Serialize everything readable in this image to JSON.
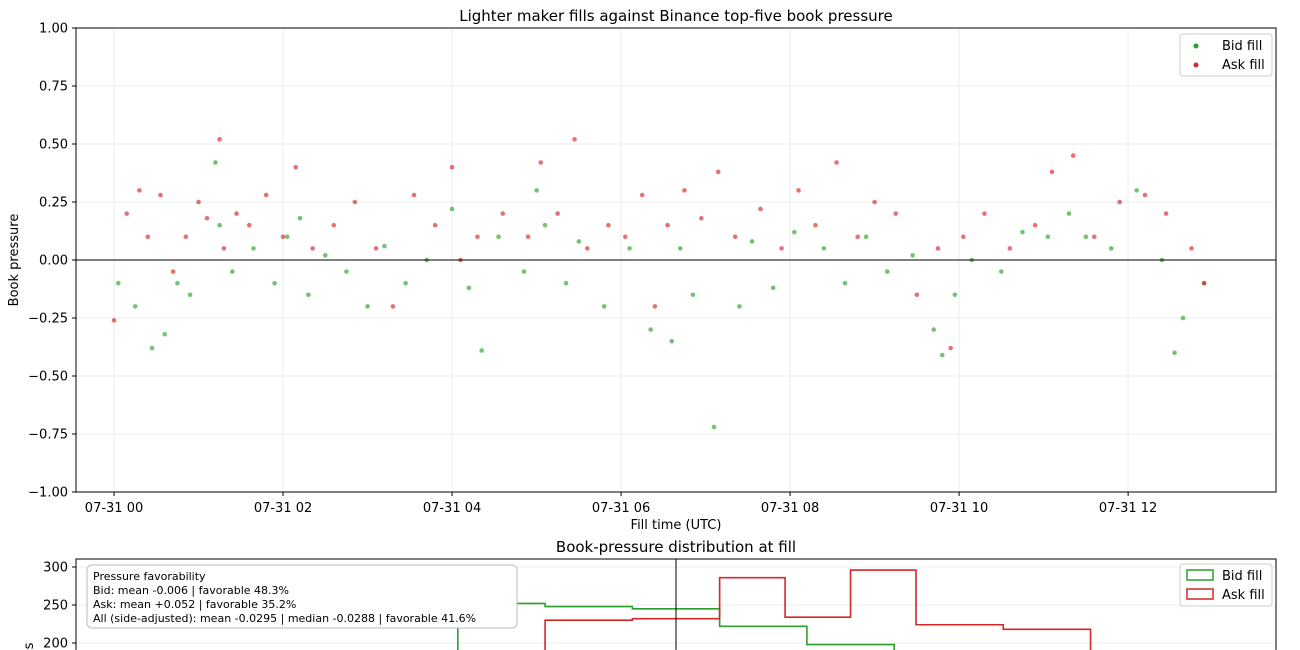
{
  "chart_data": [
    {
      "type": "scatter",
      "title": "Lighter maker fills against Binance top-five book pressure",
      "xlabel": "Fill time (UTC)",
      "ylabel": "Book pressure",
      "xlim": [
        -0.45,
        13.75
      ],
      "ylim": [
        -1.0,
        1.0
      ],
      "x_ticks": [
        {
          "label": "07-31 00",
          "value": 0
        },
        {
          "label": "07-31 02",
          "value": 2
        },
        {
          "label": "07-31 04",
          "value": 4
        },
        {
          "label": "07-31 06",
          "value": 6
        },
        {
          "label": "07-31 08",
          "value": 8
        },
        {
          "label": "07-31 10",
          "value": 10
        },
        {
          "label": "07-31 12",
          "value": 12
        }
      ],
      "y_ticks": [
        "1.00",
        "0.75",
        "0.50",
        "0.25",
        "0.00",
        "−0.25",
        "−0.50",
        "−0.75",
        "−1.00"
      ],
      "y_tick_values": [
        1.0,
        0.75,
        0.5,
        0.25,
        0.0,
        -0.25,
        -0.5,
        -0.75,
        -1.0
      ],
      "reference_line_y": 0,
      "grid": true,
      "legend_position": "top-right",
      "series": [
        {
          "name": "Bid fill",
          "color": "#2ca02c",
          "points_x": [
            0.05,
            0.25,
            0.45,
            0.6,
            0.75,
            0.9,
            1.2,
            1.25,
            1.4,
            1.65,
            1.9,
            2.05,
            2.2,
            2.3,
            2.5,
            2.75,
            3.0,
            3.2,
            3.45,
            3.7,
            4.0,
            4.2,
            4.35,
            4.55,
            4.85,
            5.0,
            5.1,
            5.35,
            5.5,
            5.8,
            6.1,
            6.35,
            6.6,
            6.7,
            6.85,
            7.1,
            7.4,
            7.55,
            7.8,
            8.05,
            8.4,
            8.65,
            8.9,
            9.15,
            9.45,
            9.7,
            9.8,
            9.95,
            10.15,
            10.5,
            10.75,
            11.05,
            11.3,
            11.5,
            11.8,
            12.1,
            12.4,
            12.55,
            12.65,
            12.9
          ],
          "points_y": [
            -0.1,
            -0.2,
            -0.38,
            -0.32,
            -0.1,
            -0.15,
            0.42,
            0.15,
            -0.05,
            0.05,
            -0.1,
            0.1,
            0.18,
            -0.15,
            0.02,
            -0.05,
            -0.2,
            0.06,
            -0.1,
            0.0,
            0.22,
            -0.12,
            -0.39,
            0.1,
            -0.05,
            0.3,
            0.15,
            -0.1,
            0.08,
            -0.2,
            0.05,
            -0.3,
            -0.35,
            0.05,
            -0.15,
            -0.72,
            -0.2,
            0.08,
            -0.12,
            0.12,
            0.05,
            -0.1,
            0.1,
            -0.05,
            0.02,
            -0.3,
            -0.41,
            -0.15,
            0.0,
            -0.05,
            0.12,
            0.1,
            0.2,
            0.1,
            0.05,
            0.3,
            0.0,
            -0.4,
            -0.25,
            -0.1
          ]
        },
        {
          "name": "Ask fill",
          "color": "#d62728",
          "points_x": [
            0.0,
            0.15,
            0.3,
            0.4,
            0.55,
            0.7,
            0.85,
            1.0,
            1.1,
            1.25,
            1.3,
            1.45,
            1.6,
            1.8,
            2.0,
            2.15,
            2.35,
            2.6,
            2.85,
            3.1,
            3.3,
            3.55,
            3.8,
            4.0,
            4.1,
            4.3,
            4.6,
            4.9,
            5.05,
            5.25,
            5.45,
            5.6,
            5.85,
            6.05,
            6.25,
            6.4,
            6.55,
            6.75,
            6.95,
            7.15,
            7.35,
            7.65,
            7.9,
            8.1,
            8.3,
            8.55,
            8.8,
            9.0,
            9.25,
            9.5,
            9.75,
            9.9,
            10.05,
            10.3,
            10.6,
            10.9,
            11.1,
            11.35,
            11.6,
            11.9,
            12.2,
            12.45,
            12.75,
            12.9
          ],
          "points_y": [
            -0.26,
            0.2,
            0.3,
            0.1,
            0.28,
            -0.05,
            0.1,
            0.25,
            0.18,
            0.52,
            0.05,
            0.2,
            0.15,
            0.28,
            0.1,
            0.4,
            0.05,
            0.15,
            0.25,
            0.05,
            -0.2,
            0.28,
            0.15,
            0.4,
            0.0,
            0.1,
            0.2,
            0.1,
            0.42,
            0.2,
            0.52,
            0.05,
            0.15,
            0.1,
            0.28,
            -0.2,
            0.15,
            0.3,
            0.18,
            0.38,
            0.1,
            0.22,
            0.05,
            0.3,
            0.15,
            0.42,
            0.1,
            0.25,
            0.2,
            -0.15,
            0.05,
            -0.38,
            0.1,
            0.2,
            0.05,
            0.15,
            0.38,
            0.45,
            0.1,
            0.25,
            0.28,
            0.2,
            0.05,
            -0.1
          ]
        }
      ]
    },
    {
      "type": "histogram",
      "title": "Book-pressure distribution at fill",
      "ylabel": "s",
      "y_ticks": [
        "300",
        "250",
        "200"
      ],
      "y_tick_values": [
        300,
        250,
        200
      ],
      "ylim": [
        170,
        310
      ],
      "xlim": [
        -0.55,
        0.55
      ],
      "reference_line_x": 0,
      "legend_position": "top-right",
      "series": [
        {
          "name": "Bid fill",
          "color": "#2ca02c",
          "bin_edges": [
            -0.2,
            -0.12,
            -0.04,
            0.04,
            0.12,
            0.2
          ],
          "counts": [
            252,
            248,
            245,
            222,
            198
          ]
        },
        {
          "name": "Ask fill",
          "color": "#d62728",
          "bin_edges": [
            -0.12,
            -0.04,
            0.04,
            0.1,
            0.16,
            0.22,
            0.3,
            0.38
          ],
          "counts": [
            230,
            232,
            286,
            234,
            296,
            224,
            218
          ]
        }
      ],
      "annotation": {
        "title": "Pressure favorability",
        "lines": [
          "Bid:  mean -0.006  |  favorable 48.3%",
          "Ask:  mean +0.052  |  favorable 35.2%",
          "All (side-adjusted):  mean -0.0295  |  median -0.0288  |  favorable 41.6%"
        ]
      }
    }
  ]
}
